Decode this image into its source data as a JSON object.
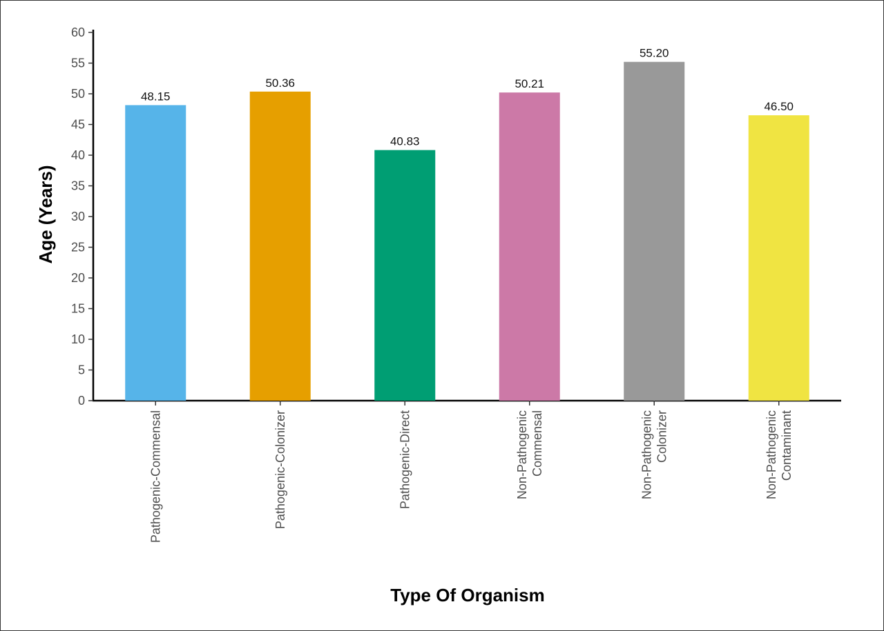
{
  "chart_data": {
    "type": "bar",
    "title": "",
    "xlabel": "Type Of Organism",
    "ylabel": "Age (Years)",
    "ylim": [
      0,
      60
    ],
    "yticks": [
      0,
      5,
      10,
      15,
      20,
      25,
      30,
      35,
      40,
      45,
      50,
      55,
      60
    ],
    "grid": false,
    "legend": "none",
    "categories": [
      [
        "Pathogenic-Commensal"
      ],
      [
        "Pathogenic-Colonizer"
      ],
      [
        "Pathogenic-Direct"
      ],
      [
        "Non-Pathogenic",
        "Commensal"
      ],
      [
        "Non-Pathogenic",
        "Colonizer"
      ],
      [
        "Non-Pathogenic",
        "Contaminant"
      ]
    ],
    "values": [
      48.15,
      50.36,
      40.83,
      50.21,
      55.2,
      46.5
    ],
    "data_labels": [
      "48.15",
      "50.36",
      "40.83",
      "50.21",
      "55.20",
      "46.50"
    ],
    "colors": [
      "#56B4E9",
      "#E69F00",
      "#009E73",
      "#CC79A7",
      "#999999",
      "#F0E442"
    ]
  }
}
